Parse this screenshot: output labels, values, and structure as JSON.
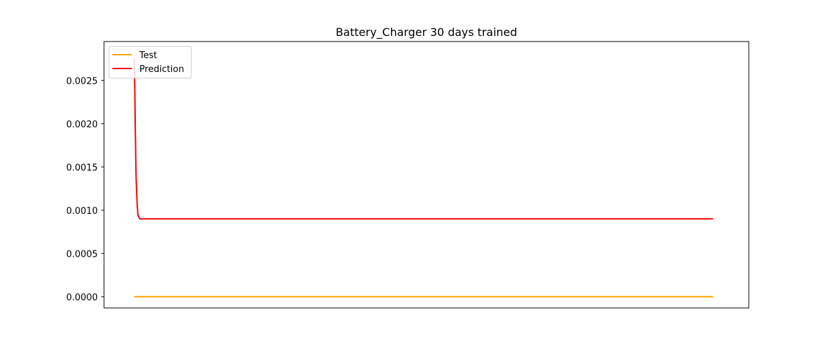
{
  "chart_data": {
    "type": "line",
    "title": "Battery_Charger 30 days trained",
    "xlabel": "",
    "ylabel": "",
    "xlim": [
      -2,
      360
    ],
    "ylim": [
      -0.00013,
      0.00295
    ],
    "x_ticks_visible": false,
    "y_ticks": [
      0.0,
      0.0005,
      0.001,
      0.0015,
      0.002,
      0.0025
    ],
    "y_tick_labels": [
      "0.0000",
      "0.0005",
      "0.0010",
      "0.0015",
      "0.0020",
      "0.0025"
    ],
    "grid": false,
    "legend_position": "upper-left",
    "series": [
      {
        "name": "Test",
        "color": "#ffa500",
        "x": [
          15,
          340
        ],
        "y": [
          0.0,
          0.0
        ]
      },
      {
        "name": "Prediction",
        "color": "#ff0000",
        "x": [
          15,
          15.3,
          15.6,
          16,
          16.5,
          17,
          18,
          20,
          340
        ],
        "y": [
          0.00276,
          0.0024,
          0.0019,
          0.0014,
          0.00112,
          0.00095,
          0.0009,
          0.0009,
          0.0009
        ]
      }
    ]
  }
}
